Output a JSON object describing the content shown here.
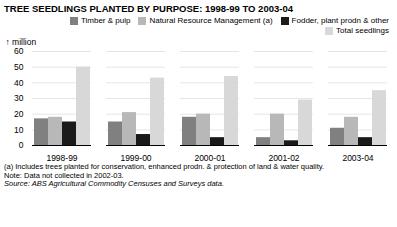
{
  "chart_data": {
    "type": "bar",
    "title": "TREE SEEDLINGS PLANTED BY PURPOSE: 1998-99 TO 2003-04",
    "ylabel": "million",
    "categories": [
      "1998-99",
      "1999-00",
      "2000-01",
      "2001-02",
      "2003-04"
    ],
    "series": [
      {
        "name": "Timber & pulp",
        "color": "#808080",
        "values": [
          17,
          15,
          18,
          5,
          11
        ]
      },
      {
        "name": "Natural Resource Management (a)",
        "color": "#b8b8b8",
        "values": [
          18,
          21,
          20,
          20,
          18
        ]
      },
      {
        "name": "Fodder, plant prodn & other",
        "color": "#1a1a1a",
        "values": [
          15,
          7,
          5,
          3,
          5
        ]
      },
      {
        "name": "Total seedlings",
        "color": "#d8d8d8",
        "values": [
          50,
          43,
          44,
          29,
          35
        ]
      }
    ],
    "ylim": [
      0,
      60
    ],
    "yticks": [
      0,
      10,
      20,
      30,
      40,
      50,
      60
    ],
    "grid": true,
    "legend": "upper right",
    "annotations": [
      "(a) Includes trees planted for conservation, enhanced prodn. & protection of land & water quality.",
      "Note: Data not collected in 2002-03.",
      "Source: ABS Agricultural Commodity Censuses and Surveys data."
    ]
  }
}
